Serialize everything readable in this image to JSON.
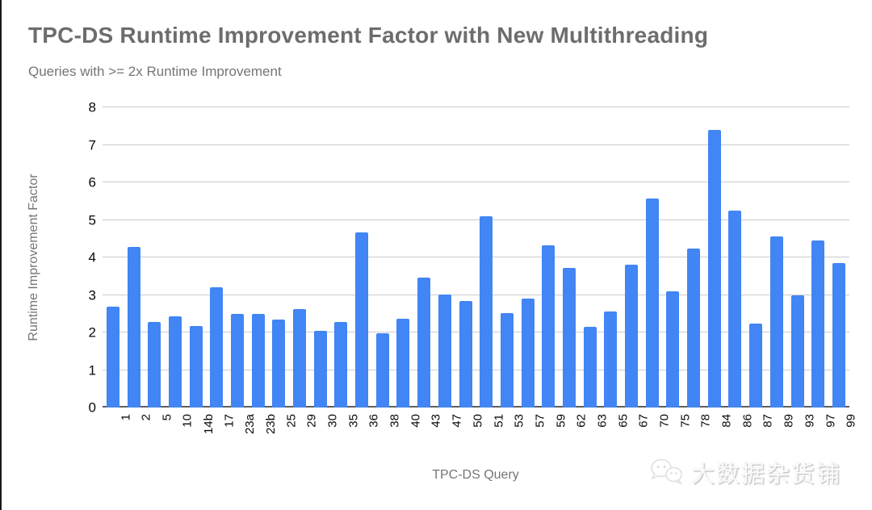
{
  "chart_data": {
    "type": "bar",
    "title": "TPC-DS Runtime Improvement Factor with New Multithreading",
    "subtitle": "Queries with >= 2x Runtime Improvement",
    "xlabel": "TPC-DS Query",
    "ylabel": "Runtime Improvement Factor",
    "ylim": [
      0,
      8
    ],
    "yticks": [
      0,
      1,
      2,
      3,
      4,
      5,
      6,
      7,
      8
    ],
    "grid": true,
    "legend_position": "none",
    "bar_color": "#4285F4",
    "categories": [
      "1",
      "2",
      "5",
      "10",
      "14b",
      "17",
      "23a",
      "23b",
      "25",
      "29",
      "30",
      "35",
      "36",
      "38",
      "40",
      "43",
      "47",
      "50",
      "51",
      "53",
      "57",
      "59",
      "62",
      "63",
      "65",
      "67",
      "70",
      "75",
      "78",
      "84",
      "86",
      "87",
      "89",
      "93",
      "97",
      "99"
    ],
    "values": [
      2.68,
      4.27,
      2.27,
      2.43,
      2.18,
      3.2,
      2.5,
      2.49,
      2.34,
      2.63,
      2.04,
      2.27,
      4.67,
      1.98,
      2.36,
      3.46,
      3.01,
      2.83,
      5.1,
      2.51,
      2.9,
      4.32,
      3.72,
      2.16,
      2.56,
      3.81,
      5.57,
      3.09,
      4.23,
      7.4,
      5.24,
      2.23,
      4.56,
      2.98,
      4.45,
      3.84
    ]
  },
  "watermark": {
    "label": "大数据杂货铺",
    "icon": "wechat-icon"
  },
  "colors": {
    "bar": "#4285F4",
    "title": "#6d6d6d",
    "axis_title": "#757575",
    "tick_label": "#0a0a0a",
    "gridline": "#cccccc",
    "baseline": "#5f5f5f",
    "background": "#ffffff"
  }
}
